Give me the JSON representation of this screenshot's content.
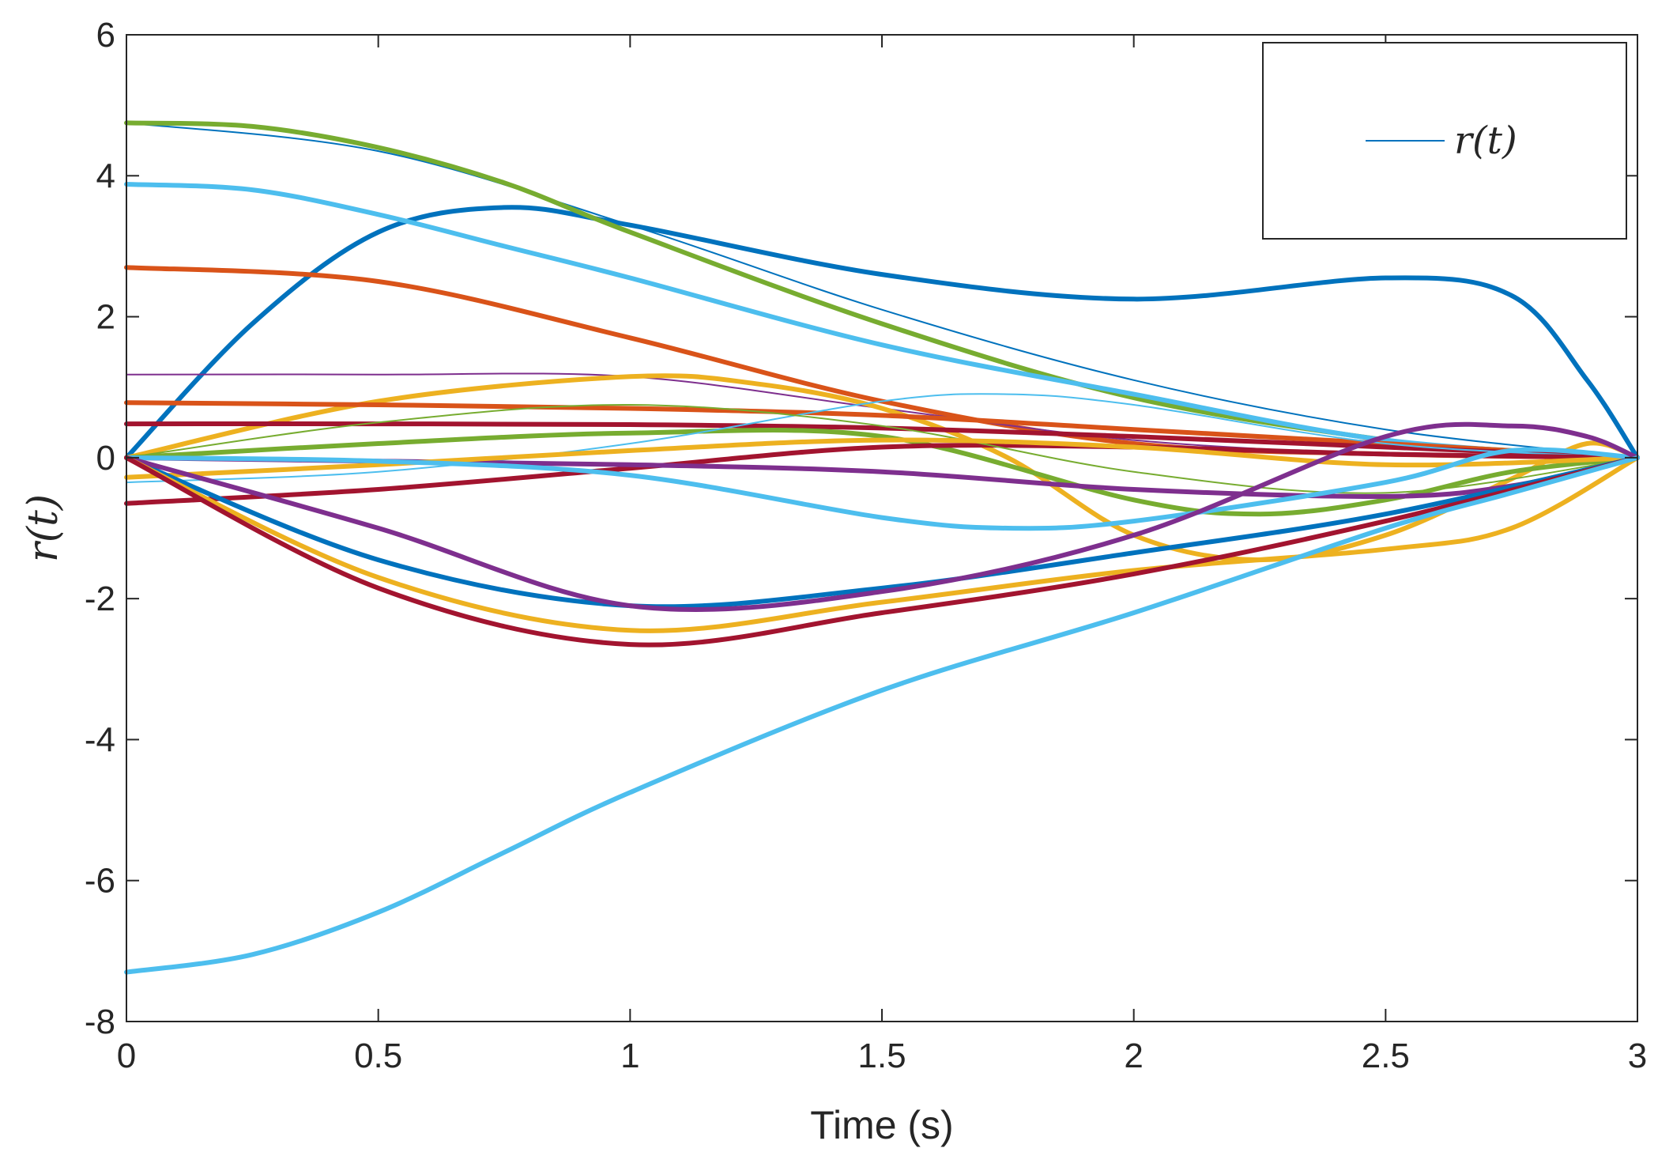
{
  "chart_data": {
    "type": "line",
    "title": "",
    "xlabel": "Time (s)",
    "ylabel": "r(t)",
    "xlim": [
      0,
      3
    ],
    "ylim": [
      -8,
      6
    ],
    "xticks": [
      0,
      0.5,
      1,
      1.5,
      2,
      2.5,
      3
    ],
    "xtick_labels": [
      "0",
      "0.5",
      "1",
      "1.5",
      "2",
      "2.5",
      "3"
    ],
    "yticks": [
      -8,
      -6,
      -4,
      -2,
      0,
      2,
      4,
      6
    ],
    "ytick_labels": [
      "-8",
      "-6",
      "-4",
      "-2",
      "0",
      "2",
      "4",
      "6"
    ],
    "grid": false,
    "legend": {
      "position": "top-right",
      "entries": [
        "r(t)"
      ],
      "color": "#0072BD"
    },
    "series": [
      {
        "name": "s1",
        "color": "#0072BD",
        "width": 6,
        "x": [
          0,
          0.25,
          0.5,
          0.75,
          1.0,
          1.5,
          2.0,
          2.5,
          2.75,
          2.9,
          3.0
        ],
        "values": [
          0,
          1.9,
          3.2,
          3.55,
          3.3,
          2.6,
          2.25,
          2.55,
          2.3,
          1.1,
          0
        ]
      },
      {
        "name": "s2",
        "color": "#0072BD",
        "width": 2,
        "x": [
          0,
          0.5,
          1.0,
          1.5,
          2.0,
          2.5,
          3.0
        ],
        "values": [
          4.75,
          4.35,
          3.3,
          2.1,
          1.1,
          0.4,
          0
        ]
      },
      {
        "name": "s3",
        "color": "#77AC30",
        "width": 6,
        "x": [
          0,
          0.25,
          0.5,
          0.75,
          1.0,
          1.5,
          2.0,
          2.5,
          2.75,
          3.0
        ],
        "values": [
          4.75,
          4.7,
          4.4,
          3.9,
          3.2,
          1.9,
          0.85,
          0.25,
          0.1,
          0
        ]
      },
      {
        "name": "s4",
        "color": "#4DBEEE",
        "width": 6,
        "x": [
          0,
          0.25,
          0.5,
          0.75,
          1.0,
          1.5,
          2.0,
          2.5,
          3.0
        ],
        "values": [
          3.88,
          3.8,
          3.45,
          3.0,
          2.55,
          1.6,
          0.9,
          0.25,
          0
        ]
      },
      {
        "name": "s5",
        "color": "#D95319",
        "width": 6,
        "x": [
          0,
          0.5,
          1.0,
          1.5,
          2.0,
          2.5,
          3.0
        ],
        "values": [
          2.7,
          2.5,
          1.7,
          0.8,
          0.2,
          0.05,
          0
        ]
      },
      {
        "name": "s6",
        "color": "#7E2F8E",
        "width": 2,
        "x": [
          0,
          0.5,
          1.0,
          1.5,
          2.0,
          2.5,
          3.0
        ],
        "values": [
          1.18,
          1.18,
          1.15,
          0.7,
          0.25,
          0.05,
          0
        ]
      },
      {
        "name": "s7",
        "color": "#EDB120",
        "width": 6,
        "x": [
          0,
          0.5,
          1.0,
          1.25,
          1.5,
          1.75,
          2.0,
          2.25,
          2.5,
          2.75,
          2.9,
          3.0
        ],
        "values": [
          0,
          0.8,
          1.15,
          1.05,
          0.7,
          0.0,
          -1.1,
          -1.45,
          -1.1,
          -0.3,
          0.2,
          0
        ]
      },
      {
        "name": "s8",
        "color": "#D95319",
        "width": 6,
        "x": [
          0,
          0.5,
          1.0,
          1.5,
          2.0,
          2.5,
          3.0
        ],
        "values": [
          0.78,
          0.75,
          0.7,
          0.6,
          0.4,
          0.2,
          0
        ]
      },
      {
        "name": "s9",
        "color": "#A2142F",
        "width": 6,
        "x": [
          0,
          0.5,
          1.0,
          1.5,
          2.0,
          2.5,
          3.0
        ],
        "values": [
          0.48,
          0.48,
          0.47,
          0.42,
          0.3,
          0.15,
          0
        ]
      },
      {
        "name": "s10",
        "color": "#77AC30",
        "width": 6,
        "x": [
          0,
          0.5,
          1.0,
          1.5,
          2.0,
          2.25,
          2.5,
          2.75,
          3.0
        ],
        "values": [
          0,
          0.2,
          0.35,
          0.3,
          -0.6,
          -0.8,
          -0.6,
          -0.2,
          0
        ]
      },
      {
        "name": "s11",
        "color": "#4DBEEE",
        "width": 2,
        "x": [
          0,
          0.5,
          1.0,
          1.5,
          1.75,
          2.0,
          2.5,
          3.0
        ],
        "values": [
          -0.35,
          -0.2,
          0.2,
          0.8,
          0.9,
          0.75,
          0.2,
          0
        ]
      },
      {
        "name": "s12",
        "color": "#A2142F",
        "width": 6,
        "x": [
          0,
          0.5,
          1.0,
          1.5,
          2.0,
          2.5,
          3.0
        ],
        "values": [
          -0.65,
          -0.45,
          -0.15,
          0.15,
          0.15,
          0.05,
          0
        ]
      },
      {
        "name": "s13",
        "color": "#77AC30",
        "width": 2,
        "x": [
          0,
          0.5,
          1.0,
          1.5,
          2.0,
          2.5,
          3.0
        ],
        "values": [
          0,
          0.5,
          0.75,
          0.45,
          -0.2,
          -0.5,
          0
        ]
      },
      {
        "name": "s14",
        "color": "#7E2F8E",
        "width": 6,
        "x": [
          0,
          0.5,
          1.0,
          1.5,
          2.0,
          2.5,
          2.75,
          3.0
        ],
        "values": [
          0,
          -0.05,
          -0.1,
          -0.2,
          -0.45,
          -0.55,
          -0.4,
          0
        ]
      },
      {
        "name": "s15",
        "color": "#EDB120",
        "width": 6,
        "x": [
          0,
          0.5,
          1.0,
          1.5,
          2.0,
          2.5,
          3.0
        ],
        "values": [
          -0.28,
          -0.1,
          0.1,
          0.25,
          0.15,
          -0.1,
          0
        ]
      },
      {
        "name": "s16",
        "color": "#4DBEEE",
        "width": 6,
        "x": [
          0,
          0.5,
          1.0,
          1.5,
          1.75,
          2.0,
          2.5,
          2.75,
          3.0
        ],
        "values": [
          0,
          -0.05,
          -0.25,
          -0.85,
          -1.0,
          -0.9,
          -0.35,
          0.1,
          0
        ]
      },
      {
        "name": "s17",
        "color": "#0072BD",
        "width": 6,
        "x": [
          0,
          0.5,
          1.0,
          1.5,
          2.0,
          2.5,
          3.0
        ],
        "values": [
          0,
          -1.45,
          -2.1,
          -1.85,
          -1.35,
          -0.8,
          0
        ]
      },
      {
        "name": "s18",
        "color": "#7E2F8E",
        "width": 6,
        "x": [
          0,
          0.5,
          1.0,
          1.5,
          2.0,
          2.5,
          2.75,
          2.9,
          3.0
        ],
        "values": [
          0,
          -1.0,
          -2.1,
          -1.9,
          -1.1,
          0.3,
          0.45,
          0.3,
          0
        ]
      },
      {
        "name": "s19",
        "color": "#EDB120",
        "width": 6,
        "x": [
          0,
          0.5,
          1.0,
          1.5,
          2.0,
          2.5,
          2.75,
          3.0
        ],
        "values": [
          0,
          -1.7,
          -2.45,
          -2.05,
          -1.6,
          -1.3,
          -1.0,
          0
        ]
      },
      {
        "name": "s20",
        "color": "#A2142F",
        "width": 6,
        "x": [
          0,
          0.5,
          1.0,
          1.5,
          2.0,
          2.5,
          3.0
        ],
        "values": [
          0,
          -1.85,
          -2.65,
          -2.2,
          -1.65,
          -0.9,
          0
        ]
      },
      {
        "name": "s21",
        "color": "#4DBEEE",
        "width": 6,
        "x": [
          0,
          0.25,
          0.5,
          0.75,
          1.0,
          1.5,
          2.0,
          2.5,
          2.75,
          3.0
        ],
        "values": [
          -7.3,
          -7.05,
          -6.45,
          -5.6,
          -4.75,
          -3.3,
          -2.2,
          -1.0,
          -0.5,
          0
        ]
      }
    ]
  }
}
